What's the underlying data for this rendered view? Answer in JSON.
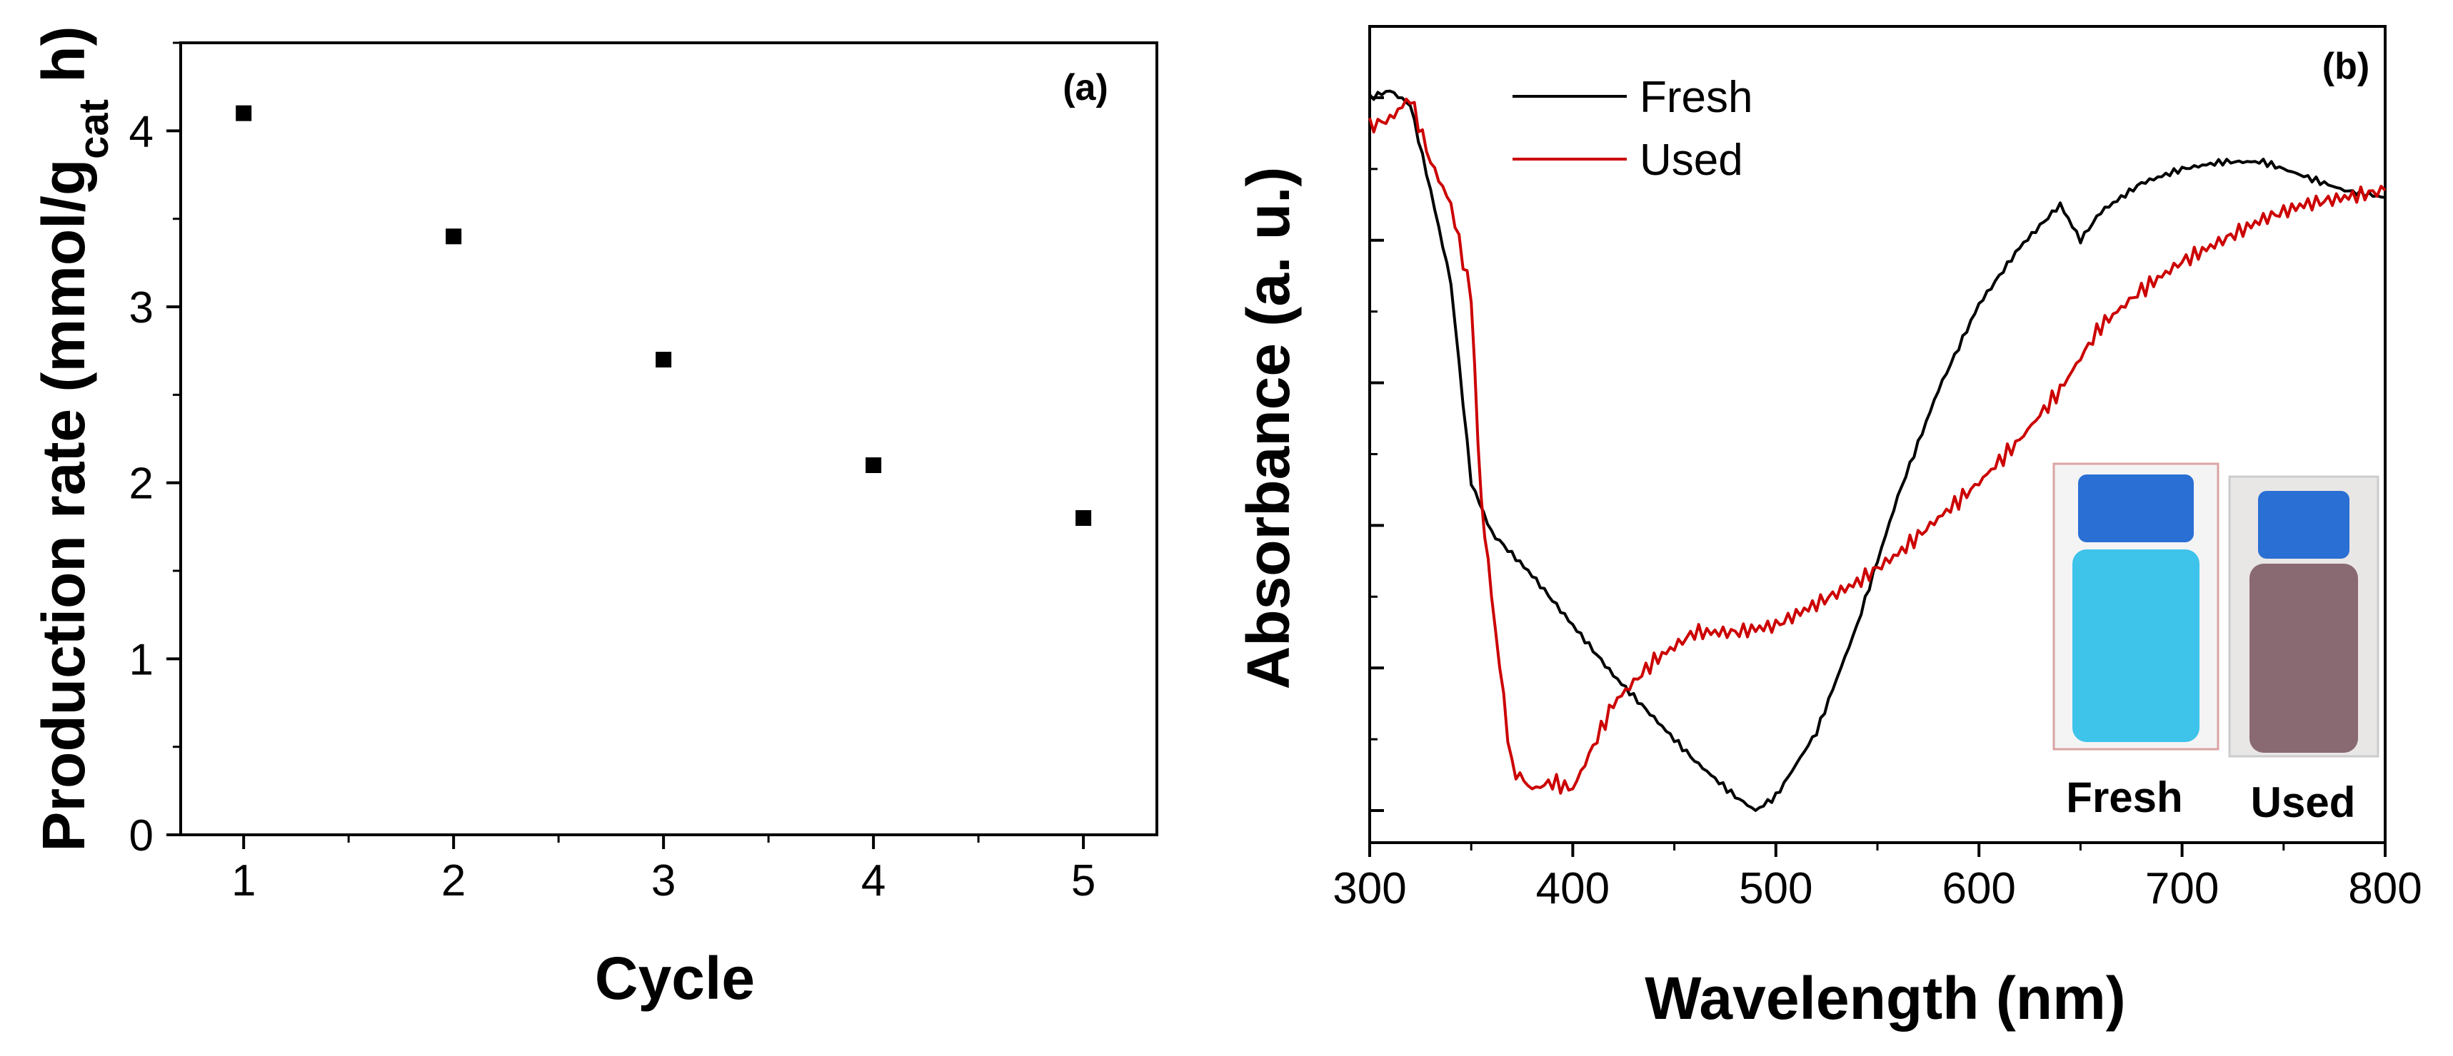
{
  "chart_data": [
    {
      "type": "scatter",
      "panel_label": "(a)",
      "xlabel": "Cycle",
      "ylabel": "Production rate (mmol/g",
      "ylabel_subscript": "cat",
      "ylabel_tail": " h)",
      "xlim": [
        0.7,
        5.35
      ],
      "ylim": [
        0,
        4.5
      ],
      "xticks": [
        1,
        2,
        3,
        4,
        5
      ],
      "yticks": [
        0,
        1,
        2,
        3,
        4
      ],
      "x": [
        1,
        2,
        3,
        4,
        5
      ],
      "y": [
        4.1,
        3.4,
        2.7,
        2.1,
        1.8
      ],
      "marker_color": "#000000"
    },
    {
      "type": "line",
      "panel_label": "(b)",
      "xlabel": "Wavelength (nm)",
      "ylabel": "Absorbance (a. u.)",
      "xlim": [
        300,
        800
      ],
      "ylim": [
        0,
        1.1
      ],
      "xticks": [
        300,
        400,
        500,
        600,
        700,
        800
      ],
      "y_tick_labels_shown": false,
      "series": [
        {
          "name": "Fresh",
          "color": "#000000",
          "x": [
            300,
            310,
            320,
            330,
            340,
            350,
            360,
            380,
            400,
            420,
            440,
            460,
            480,
            490,
            500,
            520,
            540,
            560,
            580,
            600,
            620,
            640,
            650,
            660,
            680,
            700,
            720,
            740,
            760,
            780,
            800
          ],
          "y": [
            1.0,
            1.01,
            0.99,
            0.87,
            0.74,
            0.46,
            0.39,
            0.33,
            0.26,
            0.19,
            0.13,
            0.07,
            0.02,
            0.0,
            0.02,
            0.11,
            0.26,
            0.44,
            0.59,
            0.71,
            0.79,
            0.85,
            0.8,
            0.84,
            0.88,
            0.9,
            0.91,
            0.91,
            0.89,
            0.87,
            0.86
          ]
        },
        {
          "name": "Used",
          "color": "#cc0000",
          "x": [
            300,
            310,
            320,
            330,
            340,
            350,
            355,
            360,
            370,
            380,
            390,
            400,
            410,
            420,
            440,
            460,
            480,
            500,
            520,
            540,
            560,
            580,
            600,
            620,
            640,
            660,
            680,
            700,
            720,
            740,
            760,
            780,
            800
          ],
          "y": [
            0.96,
            0.97,
            1.0,
            0.91,
            0.85,
            0.72,
            0.43,
            0.3,
            0.06,
            0.03,
            0.04,
            0.03,
            0.09,
            0.15,
            0.21,
            0.25,
            0.25,
            0.26,
            0.29,
            0.32,
            0.36,
            0.41,
            0.46,
            0.52,
            0.59,
            0.68,
            0.73,
            0.77,
            0.8,
            0.83,
            0.85,
            0.86,
            0.87
          ]
        }
      ],
      "inset": {
        "labels": [
          "Fresh",
          "Used"
        ],
        "fresh_color": "#3ec3ea",
        "used_color": "#8a6a72",
        "cap_color": "#2a6fd4"
      }
    }
  ]
}
